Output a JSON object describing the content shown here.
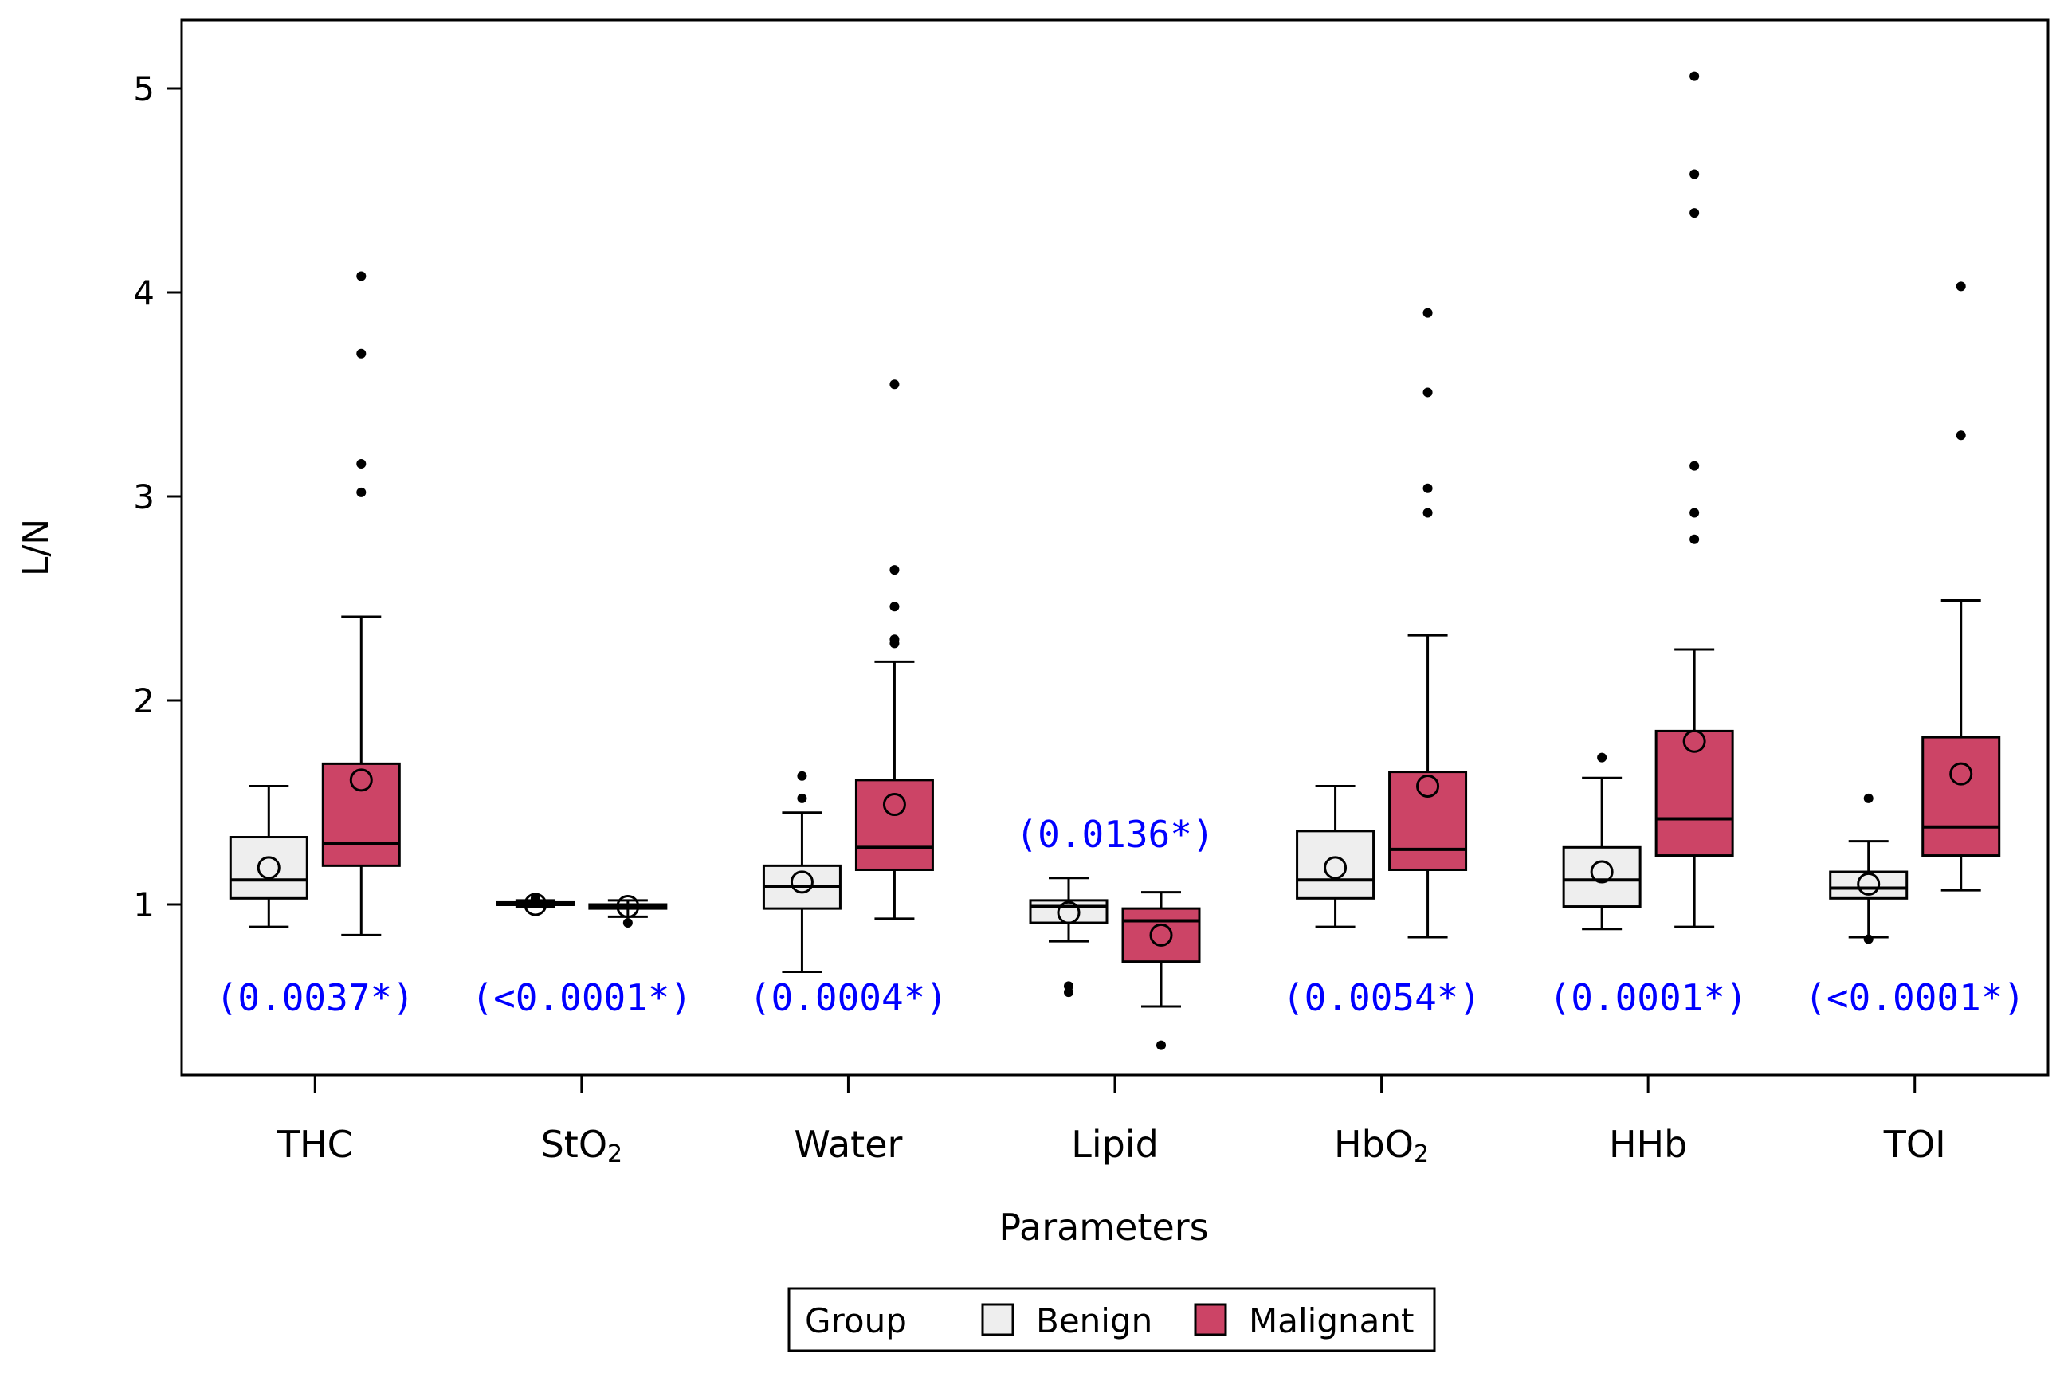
{
  "chart_data": {
    "type": "box",
    "title": "",
    "xlabel": "Parameters",
    "ylabel": "L/N",
    "ylim": [
      0.2,
      5.4
    ],
    "yticks": [
      1,
      2,
      3,
      4,
      5
    ],
    "grid": false,
    "legend": {
      "title": "Group",
      "placement": "bottom-center",
      "entries": [
        "Benign",
        "Malignant"
      ]
    },
    "colors": {
      "Benign": "#eeeeee",
      "Malignant": "#cc4466",
      "pvalue_text": "#0000ff"
    },
    "categories": [
      {
        "main": "THC",
        "sub": ""
      },
      {
        "main": "StO",
        "sub": "2"
      },
      {
        "main": "Water",
        "sub": ""
      },
      {
        "main": "Lipid",
        "sub": ""
      },
      {
        "main": "HbO",
        "sub": "2"
      },
      {
        "main": "HHb",
        "sub": ""
      },
      {
        "main": "TOI",
        "sub": ""
      }
    ],
    "pvalues": [
      "(0.0037*)",
      "(<0.0001*)",
      "(0.0004*)",
      "(0.0136*)",
      "(0.0054*)",
      "(0.0001*)",
      "(<0.0001*)"
    ],
    "pvalue_position": [
      "below",
      "below",
      "below",
      "above",
      "below",
      "below",
      "below"
    ],
    "series": [
      {
        "name": "Benign",
        "boxes": [
          {
            "whisker_low": 0.89,
            "q1": 1.03,
            "median": 1.12,
            "q3": 1.33,
            "whisker_high": 1.58,
            "mean": 1.18,
            "outliers": []
          },
          {
            "whisker_low": 0.99,
            "q1": 1.0,
            "median": 1.0,
            "q3": 1.01,
            "whisker_high": 1.02,
            "mean": 1.0,
            "outliers": [
              1.03
            ]
          },
          {
            "whisker_low": 0.67,
            "q1": 0.98,
            "median": 1.09,
            "q3": 1.19,
            "whisker_high": 1.45,
            "mean": 1.11,
            "outliers": [
              1.52,
              1.63
            ]
          },
          {
            "whisker_low": 0.82,
            "q1": 0.91,
            "median": 0.99,
            "q3": 1.02,
            "whisker_high": 1.13,
            "mean": 0.96,
            "outliers": [
              0.57,
              0.6
            ]
          },
          {
            "whisker_low": 0.89,
            "q1": 1.03,
            "median": 1.12,
            "q3": 1.36,
            "whisker_high": 1.58,
            "mean": 1.18,
            "outliers": []
          },
          {
            "whisker_low": 0.88,
            "q1": 0.99,
            "median": 1.12,
            "q3": 1.28,
            "whisker_high": 1.62,
            "mean": 1.16,
            "outliers": [
              1.72
            ]
          },
          {
            "whisker_low": 0.84,
            "q1": 1.03,
            "median": 1.08,
            "q3": 1.16,
            "whisker_high": 1.31,
            "mean": 1.1,
            "outliers": [
              1.52,
              0.83
            ]
          }
        ]
      },
      {
        "name": "Malignant",
        "boxes": [
          {
            "whisker_low": 0.85,
            "q1": 1.19,
            "median": 1.3,
            "q3": 1.69,
            "whisker_high": 2.41,
            "mean": 1.61,
            "outliers": [
              3.02,
              3.16,
              3.7,
              4.08
            ]
          },
          {
            "whisker_low": 0.94,
            "q1": 0.98,
            "median": 0.99,
            "q3": 1.0,
            "whisker_high": 1.02,
            "mean": 0.99,
            "outliers": [
              0.91
            ]
          },
          {
            "whisker_low": 0.93,
            "q1": 1.17,
            "median": 1.28,
            "q3": 1.61,
            "whisker_high": 2.19,
            "mean": 1.49,
            "outliers": [
              2.28,
              2.3,
              2.46,
              2.64,
              3.55
            ]
          },
          {
            "whisker_low": 0.5,
            "q1": 0.72,
            "median": 0.92,
            "q3": 0.98,
            "whisker_high": 1.06,
            "mean": 0.85,
            "outliers": [
              0.31
            ]
          },
          {
            "whisker_low": 0.84,
            "q1": 1.17,
            "median": 1.27,
            "q3": 1.65,
            "whisker_high": 2.32,
            "mean": 1.58,
            "outliers": [
              2.92,
              3.04,
              3.51,
              3.9
            ]
          },
          {
            "whisker_low": 0.89,
            "q1": 1.24,
            "median": 1.42,
            "q3": 1.85,
            "whisker_high": 2.25,
            "mean": 1.8,
            "outliers": [
              2.79,
              2.92,
              3.15,
              4.39,
              4.58,
              5.06
            ]
          },
          {
            "whisker_low": 1.07,
            "q1": 1.24,
            "median": 1.38,
            "q3": 1.82,
            "whisker_high": 2.49,
            "mean": 1.64,
            "outliers": [
              3.3,
              4.03
            ]
          }
        ]
      }
    ]
  }
}
